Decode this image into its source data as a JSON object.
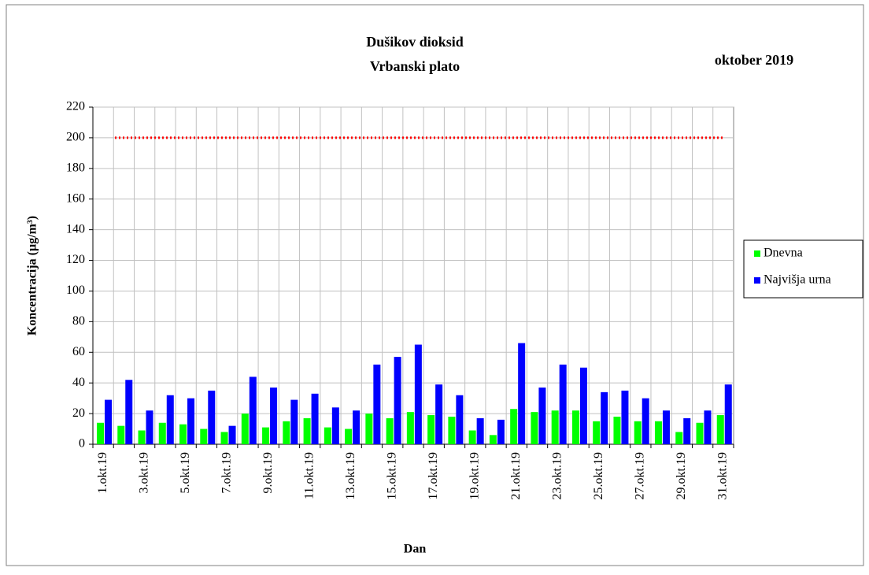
{
  "chart_data": {
    "type": "bar",
    "title": "Dušikov dioksid",
    "subtitle": "Vrbanski plato",
    "period": "oktober 2019",
    "x_label": "Dan",
    "y_label": "Koncentracija  (µg/m³)",
    "categories": [
      "1.okt.19",
      null,
      "3.okt.19",
      null,
      "5.okt.19",
      null,
      "7.okt.19",
      null,
      "9.okt.19",
      null,
      "11.okt.19",
      null,
      "13.okt.19",
      null,
      "15.okt.19",
      null,
      "17.okt.19",
      null,
      "19.okt.19",
      null,
      "21.okt.19",
      null,
      "23.okt.19",
      null,
      "25.okt.19",
      null,
      "27.okt.19",
      null,
      "29.okt.19",
      null,
      "31.okt.19"
    ],
    "series": [
      {
        "name": "Dnevna",
        "color": "#00ff00",
        "values": [
          14,
          12,
          9,
          14,
          13,
          10,
          8,
          20,
          11,
          15,
          17,
          11,
          10,
          20,
          17,
          21,
          19,
          18,
          9,
          6,
          23,
          21,
          22,
          22,
          15,
          18,
          15,
          15,
          8,
          14,
          19
        ]
      },
      {
        "name": "Najvišja urna",
        "color": "#0000ff",
        "values": [
          29,
          42,
          22,
          32,
          30,
          35,
          12,
          44,
          37,
          29,
          33,
          24,
          22,
          52,
          57,
          65,
          39,
          32,
          17,
          16,
          66,
          37,
          52,
          50,
          34,
          35,
          30,
          22,
          17,
          22,
          39
        ]
      }
    ],
    "reference_line": 200,
    "reference_line_color": "#ff0000",
    "ylim": [
      0,
      220
    ],
    "yticks": [
      0,
      20,
      40,
      60,
      80,
      100,
      120,
      140,
      160,
      180,
      200,
      220
    ],
    "grid": true,
    "legend": "right"
  }
}
